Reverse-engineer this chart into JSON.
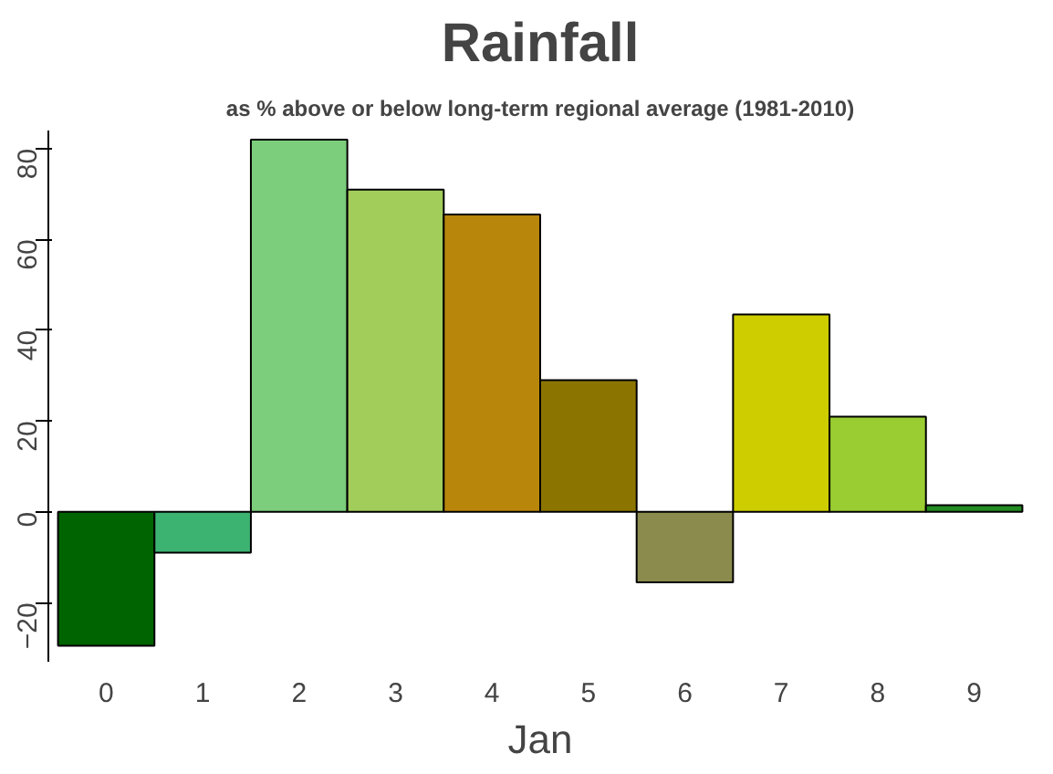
{
  "chart_data": {
    "type": "bar",
    "title": "Rainfall",
    "subtitle": "as % above or below long-term regional average (1981-2010)",
    "xlabel": "Jan",
    "categories": [
      "0",
      "1",
      "2",
      "3",
      "4",
      "5",
      "6",
      "7",
      "8",
      "9"
    ],
    "values": [
      -29.5,
      -9,
      82,
      71,
      65.5,
      29,
      -15.5,
      43.5,
      21,
      1.5
    ],
    "colors": [
      "#006400",
      "#3cb371",
      "#7ccd7c",
      "#a2cd5a",
      "#b8860b",
      "#8b7500",
      "#8b8b4e",
      "#cdcd00",
      "#9acd32",
      "#228b22"
    ],
    "ylim": [
      -33,
      84
    ],
    "yticks": [
      -20,
      0,
      20,
      40,
      60,
      80
    ],
    "grid": false
  }
}
